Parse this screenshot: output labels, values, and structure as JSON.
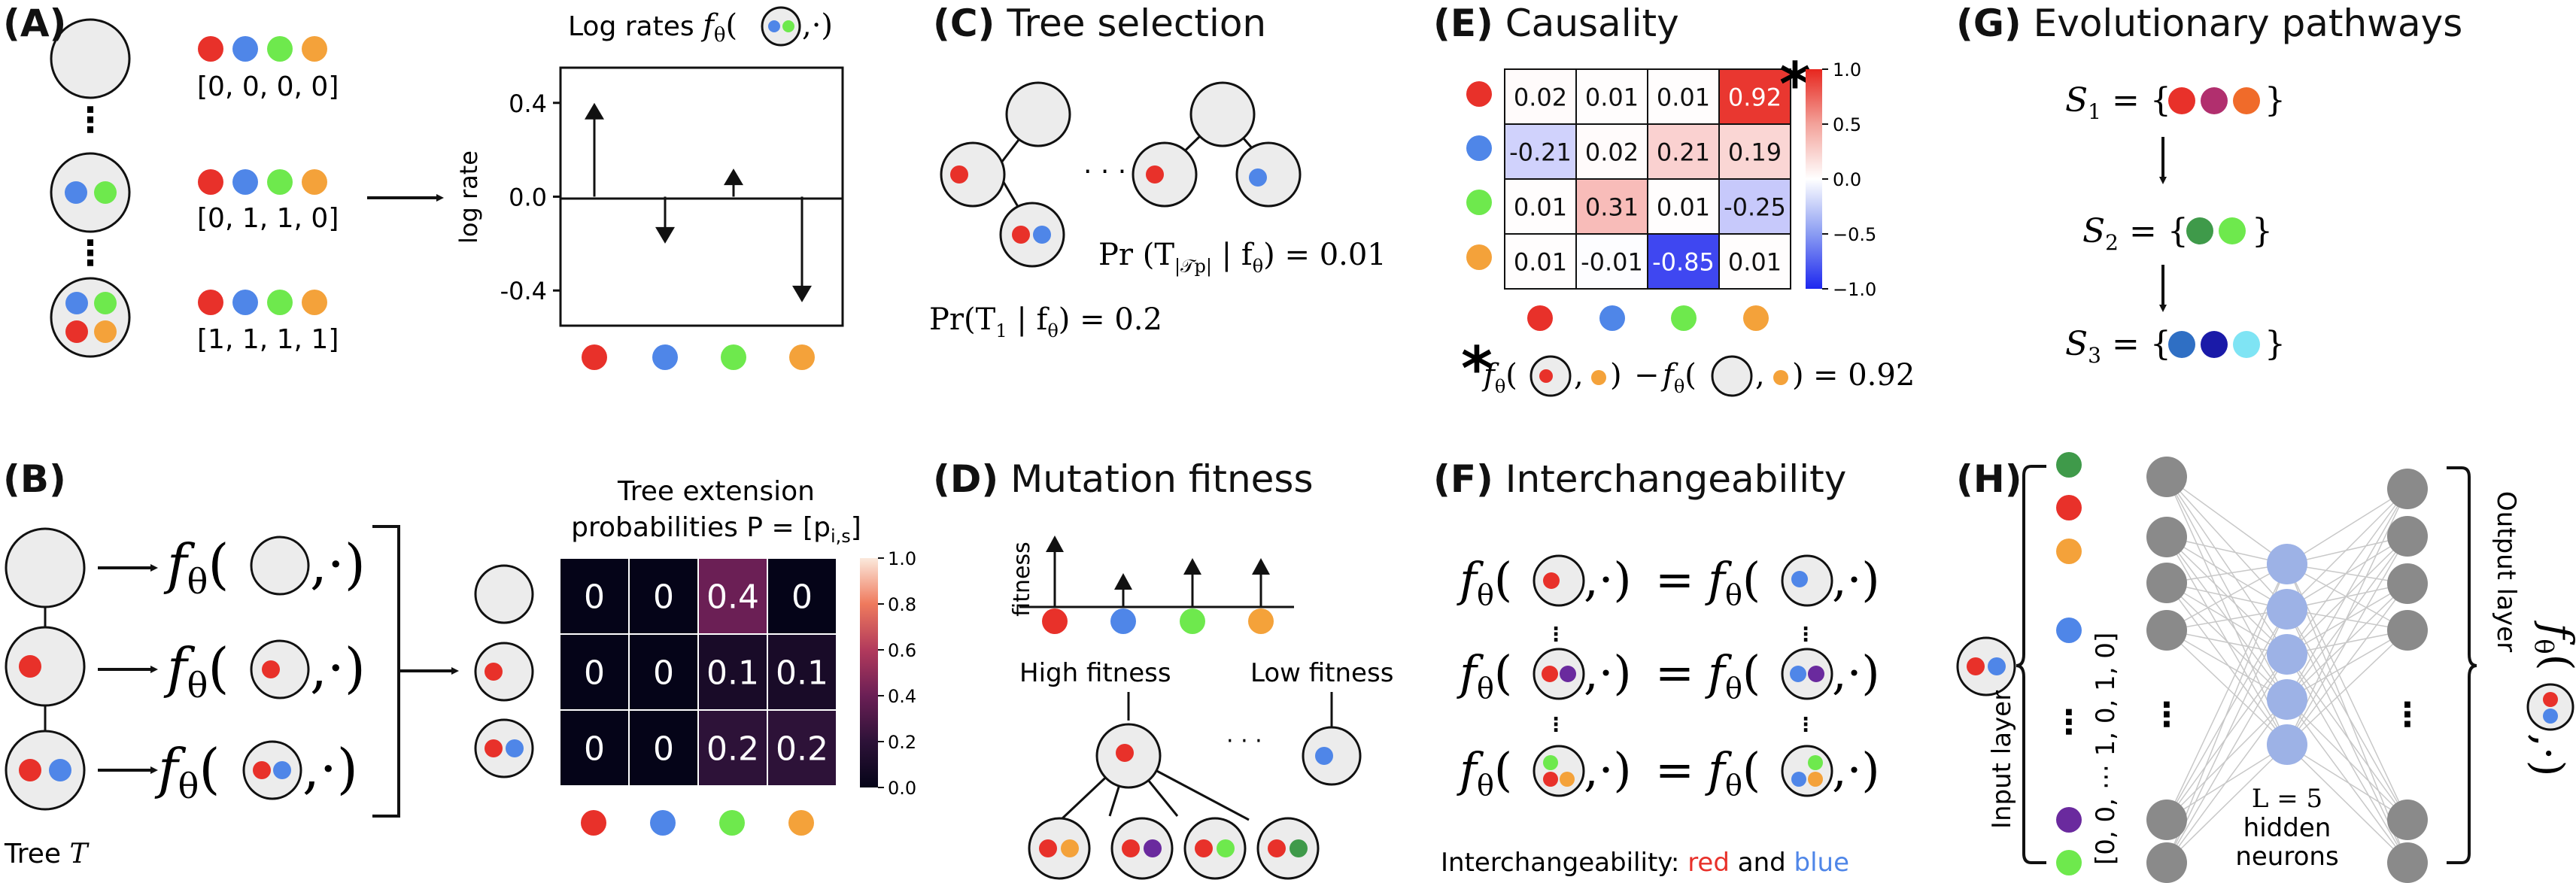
{
  "colors": {
    "red": "#e8312a",
    "blue": "#4f86e8",
    "green": "#6ee94d",
    "orange": "#f4a23a",
    "grey_circle": "#ececec",
    "neuron": "#8a8a8a",
    "hidden": "#9db2e6",
    "dark_green": "#3f9a4a",
    "magenta": "#b12f6e",
    "dark_blue": "#2f6fc4",
    "navy": "#1a1aa8",
    "cyan": "#7fe4f4",
    "purple": "#6a2a9e"
  },
  "panelA": {
    "letter": "(A)",
    "vec1": "[0, 0, 0, 0]",
    "vec2": "[0, 1, 1, 0]",
    "vec3": "[1, 1, 1, 1]",
    "dots": "⋮",
    "chart_title": "Log rates",
    "chart_fn": "f",
    "chart_fn_sub": "θ",
    "chart_fn_args_tail": ",·)",
    "ylabel": "log rate",
    "ticks": [
      "0.4",
      "0.0",
      "-0.4"
    ]
  },
  "chart_data": {
    "type": "bar",
    "categories": [
      "red",
      "blue",
      "green",
      "orange"
    ],
    "values": [
      0.4,
      -0.2,
      0.12,
      -0.45
    ],
    "ylim": [
      -0.55,
      0.55
    ],
    "ylabel": "log rate",
    "yticks": [
      0.4,
      0.0,
      -0.4
    ]
  },
  "panelB": {
    "letter": "(B)",
    "fn": "f",
    "fn_sub": "θ",
    "fn_tail": ",·)",
    "tree_label": "Tree ",
    "tree_sym": "T",
    "heat_title1": "Tree extension",
    "heat_title2": "probabilities P = [p",
    "heat_title2_sub": "i,s",
    "heat_title2_tail": "]",
    "cells": [
      [
        "0",
        "0",
        "0.4",
        "0"
      ],
      [
        "0",
        "0",
        "0.1",
        "0.1"
      ],
      [
        "0",
        "0",
        "0.2",
        "0.2"
      ]
    ],
    "cell_values": [
      [
        0,
        0,
        0.4,
        0
      ],
      [
        0,
        0,
        0.1,
        0.1
      ],
      [
        0,
        0,
        0.2,
        0.2
      ]
    ],
    "cbar_ticks": [
      "1.0",
      "0.8",
      "0.6",
      "0.4",
      "0.2",
      "0.0"
    ]
  },
  "panelC": {
    "letter": "(C)",
    "title": "Tree selection",
    "ellipsis": "· · ·",
    "eq1": "Pr(T",
    "eq1_sub": "1",
    "eq1_tail": " | f",
    "eq1_fsub": "θ",
    "eq1_end": ") = 0.2",
    "eq2": "Pr (T",
    "eq2_sub": "|𝒯p|",
    "eq2_tail": " | f",
    "eq2_fsub": "θ",
    "eq2_end": ") = 0.01"
  },
  "panelD": {
    "letter": "(D)",
    "title": "Mutation fitness",
    "ylabel": "fitness",
    "high": "High fitness",
    "low": "Low fitness",
    "ellipsis": "· · ·"
  },
  "panelE": {
    "letter": "(E)",
    "title": "Causality",
    "cells": [
      [
        "0.02",
        "0.01",
        "0.01",
        "0.92"
      ],
      [
        "-0.21",
        "0.02",
        "0.21",
        "0.19"
      ],
      [
        "0.01",
        "0.31",
        "0.01",
        "-0.25"
      ],
      [
        "0.01",
        "-0.01",
        "-0.85",
        "0.01"
      ]
    ],
    "cell_values": [
      [
        0.02,
        0.01,
        0.01,
        0.92
      ],
      [
        -0.21,
        0.02,
        0.21,
        0.19
      ],
      [
        0.01,
        0.31,
        0.01,
        -0.25
      ],
      [
        0.01,
        -0.01,
        -0.85,
        0.01
      ]
    ],
    "cbar_ticks": [
      "1.0",
      "0.5",
      "0.0",
      "−0.5",
      "−1.0"
    ],
    "star": "*",
    "eq_f": "f",
    "eq_sub": "θ",
    "eq_mid": ",",
    "eq_close": ")",
    "eq_minus": "−",
    "eq_end": "= 0.92"
  },
  "panelF": {
    "letter": "(F)",
    "title": "Interchangeability",
    "fn": "f",
    "fn_sub": "θ",
    "fn_tail": ",·)",
    "equals": "=",
    "footer_prefix": "Interchangeability: ",
    "footer_red": "red",
    "footer_and": " and ",
    "footer_blue": "blue"
  },
  "panelG": {
    "letter": "(G)",
    "title": "Evolutionary pathways",
    "s1": "S",
    "s1_sub": "1",
    "s2": "S",
    "s2_sub": "2",
    "s3": "S",
    "s3_sub": "3",
    "eq_open": "= {",
    "close": "}"
  },
  "panelH": {
    "letter": "(H)",
    "input_layer": "Input layer",
    "output_layer": "Output layer",
    "vec_top": "[0,  0,  ⋯  1,  0,  1,  0]",
    "L_text": "L = 5",
    "hidden_text": "hidden",
    "neurons_text": "neurons",
    "fn": "f",
    "fn_sub": "θ",
    "fn_tail": ",·)"
  }
}
